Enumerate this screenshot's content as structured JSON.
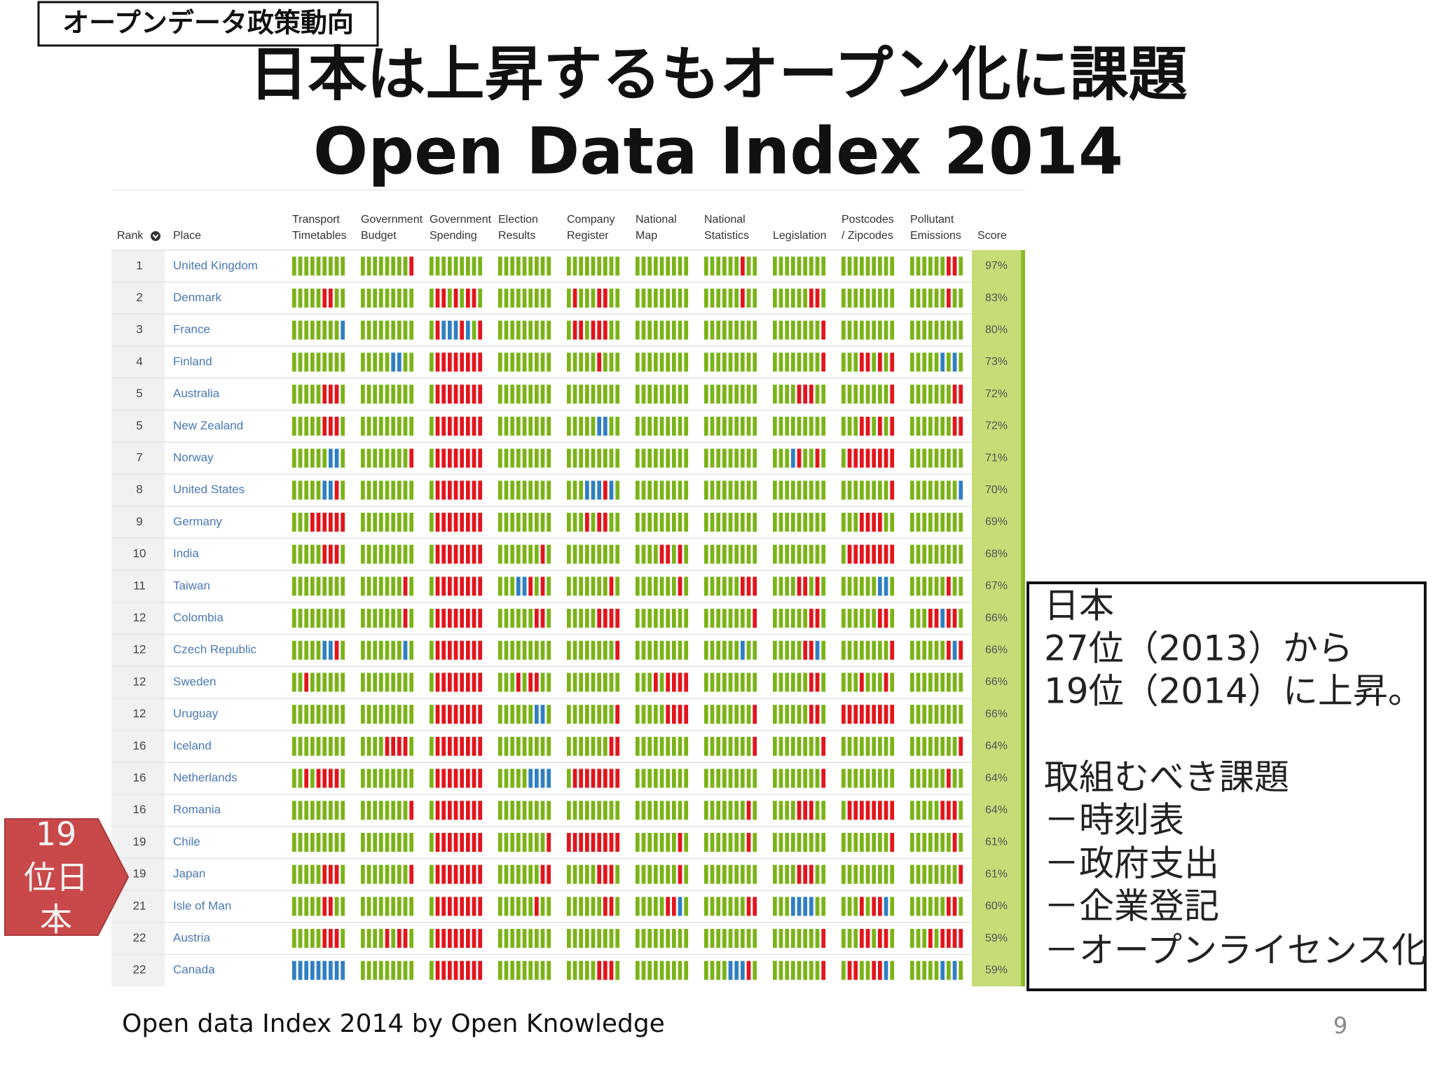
{
  "header": {
    "tag": "オープンデータ政策動向",
    "title": "日本は上昇するもオープン化に課題",
    "subtitle": "Open Data Index 2014"
  },
  "table": {
    "columns": [
      [
        "Rank"
      ],
      [
        "Place"
      ],
      [
        "Transport",
        "Timetables"
      ],
      [
        "Government",
        "Budget"
      ],
      [
        "Government",
        "Spending"
      ],
      [
        "Election",
        "Results"
      ],
      [
        "Company",
        "Register"
      ],
      [
        "National",
        "Map"
      ],
      [
        "National",
        "Statistics"
      ],
      [
        "Legislation"
      ],
      [
        "Postcodes",
        "/ Zipcodes"
      ],
      [
        "Pollutant",
        "Emissions"
      ],
      [
        "Score"
      ]
    ],
    "bar_colors": {
      "g": "#7ab317",
      "r": "#e3141b",
      "b": "#2f7fc2"
    },
    "rows": [
      {
        "rank": "1",
        "place": "United Kingdom",
        "score": "97%",
        "cells": [
          "ggggggggg",
          "ggggggggr",
          "ggggggggg",
          "ggggggggg",
          "ggggggggg",
          "ggggggggg",
          "ggggggrgg",
          "ggggggggg",
          "ggggggggg",
          "ggggggrrg"
        ]
      },
      {
        "rank": "2",
        "place": "Denmark",
        "score": "83%",
        "cells": [
          "gggggrrgg",
          "ggggggggg",
          "grrgrgrrg",
          "ggggggggg",
          "grgggrrgg",
          "ggggggggg",
          "ggggggrgg",
          "ggggggrrg",
          "ggggggggg",
          "ggggggrgg"
        ]
      },
      {
        "rank": "3",
        "place": "France",
        "score": "80%",
        "cells": [
          "ggggggggb",
          "ggggggggg",
          "grbbbrbgr",
          "ggggggggg",
          "grrgrrrgg",
          "ggggggggg",
          "ggggggggg",
          "ggggggggr",
          "ggggggggg",
          "ggggggggg"
        ]
      },
      {
        "rank": "4",
        "place": "Finland",
        "score": "73%",
        "cells": [
          "ggggggggg",
          "gggggbbgg",
          "grrrrrrrr",
          "ggggggggg",
          "gggggrggg",
          "ggggggggg",
          "ggggggggg",
          "ggggggggr",
          "gggrrgrgr",
          "gggggbgbg"
        ]
      },
      {
        "rank": "5",
        "place": "Australia",
        "score": "72%",
        "cells": [
          "gggggrrrg",
          "ggggggggg",
          "grrrrrrrr",
          "ggggggggg",
          "ggggggggg",
          "ggggggggg",
          "ggggggggg",
          "ggggrrrgg",
          "ggggggggr",
          "gggggggrr"
        ]
      },
      {
        "rank": "5",
        "place": "New Zealand",
        "score": "72%",
        "cells": [
          "gggggrrrg",
          "ggggggggg",
          "grrrrrrrr",
          "ggggggggg",
          "gggggbbgg",
          "ggggggggg",
          "ggggggggg",
          "ggggggggg",
          "gggrrgrgr",
          "gggggggrr"
        ]
      },
      {
        "rank": "7",
        "place": "Norway",
        "score": "71%",
        "cells": [
          "ggggggbbg",
          "ggggggggr",
          "grrrrrrrr",
          "ggggggggg",
          "ggggggggg",
          "ggggggggg",
          "ggggggggg",
          "gggbrggrg",
          "grrrrrrrr",
          "ggggggggg"
        ]
      },
      {
        "rank": "8",
        "place": "United States",
        "score": "70%",
        "cells": [
          "gggggbbrg",
          "ggggggggg",
          "grrrrrrrr",
          "ggggggggg",
          "gggbbbrbg",
          "ggggggggg",
          "ggggggggg",
          "ggggggggg",
          "ggggggggr",
          "ggggggggb"
        ]
      },
      {
        "rank": "9",
        "place": "Germany",
        "score": "69%",
        "cells": [
          "gggrrrrrr",
          "ggggggggg",
          "grrrrrrrr",
          "ggggggggg",
          "gggrgrrgg",
          "ggggggggg",
          "ggggggggg",
          "ggggggggg",
          "gggrrrrgg",
          "ggggggggg"
        ]
      },
      {
        "rank": "10",
        "place": "India",
        "score": "68%",
        "cells": [
          "gggggrrrg",
          "ggggggggg",
          "grrrrrrrr",
          "gggggggrg",
          "ggggggggg",
          "ggggrrgrg",
          "ggggggggg",
          "ggggggggg",
          "grrrrrrrr",
          "ggggggggg"
        ]
      },
      {
        "rank": "11",
        "place": "Taiwan",
        "score": "67%",
        "cells": [
          "ggggggggg",
          "gggggggrg",
          "grrrrrrrr",
          "gggbbrgrg",
          "gggggggrg",
          "gggggggrg",
          "ggggggrrr",
          "ggggrrgrg",
          "ggggggbbg",
          "ggggggrgg"
        ]
      },
      {
        "rank": "12",
        "place": "Colombia",
        "score": "66%",
        "cells": [
          "ggggggggg",
          "gggggggrg",
          "grrrrrrrr",
          "ggggggrrg",
          "gggggrrrr",
          "ggggggggg",
          "ggggggggr",
          "ggggggrrg",
          "ggggggrrg",
          "gggrrbrrg"
        ]
      },
      {
        "rank": "12",
        "place": "Czech Republic",
        "score": "66%",
        "cells": [
          "gggggbbrg",
          "gggggggbg",
          "grrrrrrrr",
          "ggggggggg",
          "ggggggggr",
          "ggggggggg",
          "ggggggbgg",
          "gggggrrbg",
          "ggggggggr",
          "ggggggrbr"
        ]
      },
      {
        "rank": "12",
        "place": "Sweden",
        "score": "66%",
        "cells": [
          "ggrgggggg",
          "ggggggggg",
          "grrrrrrrr",
          "gggrgrrgg",
          "ggggggggg",
          "gggrgrrrr",
          "ggggggggg",
          "ggggggrrg",
          "gggrgggrg",
          "ggggggggg"
        ]
      },
      {
        "rank": "12",
        "place": "Uruguay",
        "score": "66%",
        "cells": [
          "ggggggggg",
          "ggggggggg",
          "grrrrrrrr",
          "ggggggbbg",
          "ggggggggr",
          "gggggrrrr",
          "ggggggggr",
          "ggggggrrg",
          "rrrrrrrrr",
          "ggggggggg"
        ]
      },
      {
        "rank": "16",
        "place": "Iceland",
        "score": "64%",
        "cells": [
          "ggggggggg",
          "ggggrrrrg",
          "grrrrrrrr",
          "ggggggggg",
          "gggggggrr",
          "ggggggggg",
          "ggggggggr",
          "ggggggggr",
          "ggggggggg",
          "ggggggggr"
        ]
      },
      {
        "rank": "16",
        "place": "Netherlands",
        "score": "64%",
        "cells": [
          "ggrgrrrrg",
          "ggggggggg",
          "grrrrrrrr",
          "gggggbbbb",
          "grrrrrrrr",
          "ggggggggg",
          "ggggggggg",
          "ggggggggr",
          "ggggggggg",
          "ggggggrgg"
        ]
      },
      {
        "rank": "16",
        "place": "Romania",
        "score": "64%",
        "cells": [
          "ggggggggg",
          "ggggggggr",
          "grrrrrrrr",
          "ggggggggg",
          "ggggggggg",
          "ggggggggg",
          "gggggggrg",
          "ggggrrrgg",
          "grrrrrrrr",
          "gggggrrrg"
        ]
      },
      {
        "rank": "19",
        "place": "Chile",
        "score": "61%",
        "cells": [
          "ggggggggg",
          "ggggggggg",
          "grrrrrrrr",
          "ggggggggr",
          "rrrrrrrrr",
          "gggggggrg",
          "gggggggrg",
          "ggggggggg",
          "ggggggggr",
          "gggggggrg"
        ]
      },
      {
        "rank": "19",
        "place": "Japan",
        "score": "61%",
        "cells": [
          "gggggrrrg",
          "ggggggggr",
          "grrrrrrrr",
          "gggggggrr",
          "gggggrrrg",
          "gggggggrg",
          "ggggggggg",
          "ggggrrrgg",
          "ggggggggg",
          "ggggggggr"
        ]
      },
      {
        "rank": "21",
        "place": "Isle of Man",
        "score": "60%",
        "cells": [
          "gggggrrgg",
          "ggggggggg",
          "grrrrrrrr",
          "ggggggrgg",
          "ggggggrrg",
          "gggggrrbg",
          "gggggggrr",
          "gggbbbbgg",
          "gggrgrrbg",
          "ggggggrrg"
        ]
      },
      {
        "rank": "22",
        "place": "Austria",
        "score": "59%",
        "cells": [
          "gggggrrrg",
          "ggggrgrrg",
          "grrrrrrrr",
          "ggggggggg",
          "ggggggggg",
          "ggggggggg",
          "ggggggggg",
          "ggggggggr",
          "gggrrgrrg",
          "gggrgrrrr"
        ]
      },
      {
        "rank": "22",
        "place": "Canada",
        "score": "59%",
        "cells": [
          "bbbbbbbbb",
          "ggggggggg",
          "grrrrrrrr",
          "ggggggggg",
          "gggggrrrg",
          "ggggggggg",
          "ggggbbbrg",
          "ggggggggr",
          "grrggrrbg",
          "gggggbgbg"
        ]
      }
    ]
  },
  "callout": {
    "badge": [
      "19",
      "位日",
      "本"
    ],
    "lines": [
      "日本",
      "27位（2013）から",
      "19位（2014）に上昇。",
      "取組むべき課題",
      "－時刻表",
      "－政府支出",
      "－企業登記",
      "－オープンライセンス化"
    ]
  },
  "footer": {
    "source": "Open data Index 2014 by Open Knowledge",
    "page": "9"
  }
}
